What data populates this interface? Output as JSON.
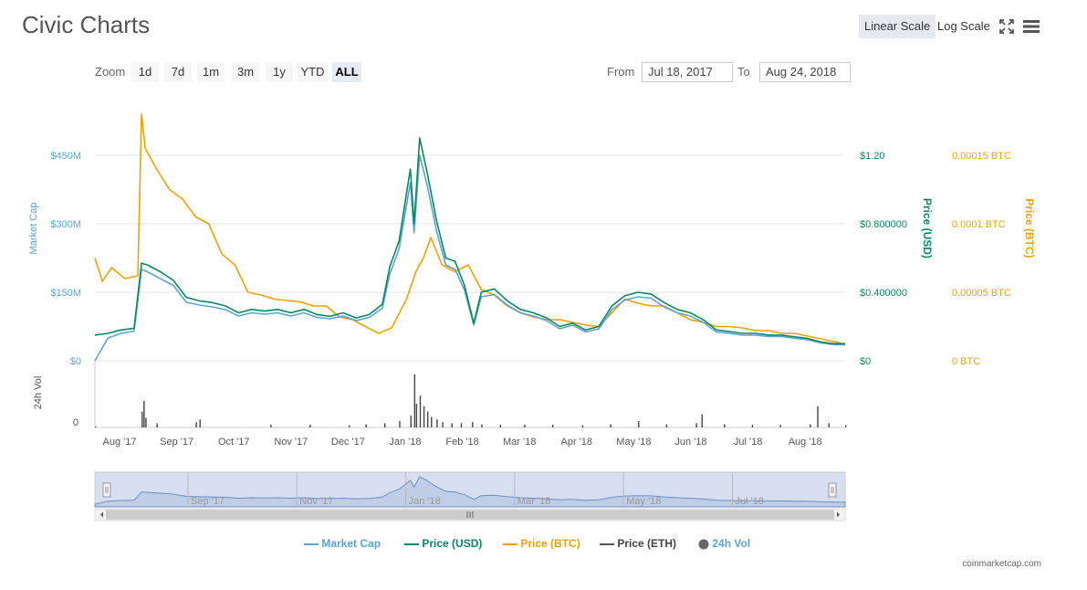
{
  "title": "Civic Charts",
  "toolbar": {
    "linear_scale": "Linear Scale",
    "log_scale": "Log Scale",
    "fullscreen_icon": "fullscreen-icon",
    "menu_icon": "hamburger-menu-icon"
  },
  "zoom": {
    "label": "Zoom",
    "buttons": [
      "1d",
      "7d",
      "1m",
      "3m",
      "1y",
      "YTD",
      "ALL"
    ],
    "active": "ALL"
  },
  "range": {
    "from_label": "From",
    "from_value": "Jul 18, 2017",
    "to_label": "To",
    "to_value": "Aug 24, 2018"
  },
  "colors": {
    "market_cap": "#5ba4d9",
    "price_usd": "#0a8a5e",
    "price_btc": "#f2a100",
    "price_eth": "#555555",
    "volume": "#444444"
  },
  "legend": {
    "market_cap": "Market Cap",
    "price_usd": "Price (USD)",
    "price_btc": "Price (BTC)",
    "price_eth": "Price (ETH)",
    "volume": "24h Vol"
  },
  "credit": "coinmarketcap.com",
  "chart_data": {
    "type": "line",
    "title": "Civic Charts",
    "x_range": [
      "2017-07-18",
      "2018-08-24"
    ],
    "x_ticks": [
      "Aug '17",
      "Sep '17",
      "Oct '17",
      "Nov '17",
      "Dec '17",
      "Jan '18",
      "Feb '18",
      "Mar '18",
      "Apr '18",
      "May '18",
      "Jun '18",
      "Jul '18",
      "Aug '18"
    ],
    "navigator_ticks": [
      "Sep '17",
      "Nov '17",
      "Jan '18",
      "Mar '18",
      "May '18",
      "Jul '18"
    ],
    "axes": {
      "market_cap": {
        "label": "Market Cap",
        "ticks": [
          "$0",
          "$150M",
          "$300M",
          "$450M"
        ],
        "range": [
          0,
          450
        ]
      },
      "price_usd": {
        "label": "Price (USD)",
        "ticks": [
          "$0",
          "$0.400000",
          "$0.800000",
          "$1.20"
        ],
        "range": [
          0,
          1.2
        ]
      },
      "price_btc": {
        "label": "Price (BTC)",
        "ticks": [
          "0 BTC",
          "0.00005 BTC",
          "0.0001 BTC",
          "0.00015 BTC"
        ],
        "range": [
          0,
          0.00015
        ]
      },
      "volume": {
        "label": "24h Vol",
        "ticks": [
          "0"
        ]
      }
    },
    "series": [
      {
        "name": "Price (USD)",
        "x": [
          "2017-07-18",
          "2017-07-25",
          "2017-08-01",
          "2017-08-08",
          "2017-08-12",
          "2017-08-15",
          "2017-08-22",
          "2017-08-29",
          "2017-09-05",
          "2017-09-12",
          "2017-09-19",
          "2017-09-26",
          "2017-10-03",
          "2017-10-10",
          "2017-10-17",
          "2017-10-24",
          "2017-10-31",
          "2017-11-07",
          "2017-11-14",
          "2017-11-21",
          "2017-11-28",
          "2017-12-05",
          "2017-12-12",
          "2017-12-19",
          "2017-12-23",
          "2017-12-28",
          "2018-01-03",
          "2018-01-05",
          "2018-01-08",
          "2018-01-12",
          "2018-01-17",
          "2018-01-22",
          "2018-01-27",
          "2018-02-01",
          "2018-02-06",
          "2018-02-10",
          "2018-02-17",
          "2018-02-24",
          "2018-03-03",
          "2018-03-10",
          "2018-03-17",
          "2018-03-24",
          "2018-03-31",
          "2018-04-07",
          "2018-04-14",
          "2018-04-21",
          "2018-04-28",
          "2018-05-05",
          "2018-05-12",
          "2018-05-19",
          "2018-05-26",
          "2018-06-02",
          "2018-06-09",
          "2018-06-16",
          "2018-06-23",
          "2018-06-30",
          "2018-07-07",
          "2018-07-14",
          "2018-07-21",
          "2018-07-28",
          "2018-08-04",
          "2018-08-11",
          "2018-08-18",
          "2018-08-24"
        ],
        "values": [
          0.15,
          0.16,
          0.18,
          0.19,
          0.57,
          0.56,
          0.52,
          0.47,
          0.37,
          0.35,
          0.34,
          0.32,
          0.28,
          0.3,
          0.29,
          0.3,
          0.28,
          0.3,
          0.27,
          0.26,
          0.28,
          0.25,
          0.27,
          0.33,
          0.55,
          0.7,
          1.12,
          0.8,
          1.3,
          1.1,
          0.82,
          0.6,
          0.58,
          0.44,
          0.22,
          0.4,
          0.42,
          0.35,
          0.3,
          0.28,
          0.25,
          0.2,
          0.22,
          0.18,
          0.2,
          0.32,
          0.38,
          0.4,
          0.39,
          0.34,
          0.3,
          0.28,
          0.24,
          0.18,
          0.17,
          0.16,
          0.16,
          0.15,
          0.15,
          0.14,
          0.13,
          0.11,
          0.1,
          0.1
        ]
      },
      {
        "name": "Market Cap",
        "x": [
          "2017-07-18",
          "2017-07-25",
          "2017-08-01",
          "2017-08-08",
          "2017-08-12",
          "2017-08-15",
          "2017-08-22",
          "2017-08-29",
          "2017-09-05",
          "2017-09-12",
          "2017-09-19",
          "2017-09-26",
          "2017-10-03",
          "2017-10-10",
          "2017-10-17",
          "2017-10-24",
          "2017-10-31",
          "2017-11-07",
          "2017-11-14",
          "2017-11-21",
          "2017-11-28",
          "2017-12-05",
          "2017-12-12",
          "2017-12-19",
          "2017-12-23",
          "2017-12-28",
          "2018-01-03",
          "2018-01-05",
          "2018-01-08",
          "2018-01-12",
          "2018-01-17",
          "2018-01-22",
          "2018-01-27",
          "2018-02-01",
          "2018-02-06",
          "2018-02-10",
          "2018-02-17",
          "2018-02-24",
          "2018-03-03",
          "2018-03-10",
          "2018-03-17",
          "2018-03-24",
          "2018-03-31",
          "2018-04-07",
          "2018-04-14",
          "2018-04-21",
          "2018-04-28",
          "2018-05-05",
          "2018-05-12",
          "2018-05-19",
          "2018-05-26",
          "2018-06-02",
          "2018-06-09",
          "2018-06-16",
          "2018-06-23",
          "2018-06-30",
          "2018-07-07",
          "2018-07-14",
          "2018-07-21",
          "2018-07-28",
          "2018-08-04",
          "2018-08-11",
          "2018-08-18",
          "2018-08-24"
        ],
        "values": [
          0,
          50,
          60,
          65,
          200,
          195,
          180,
          165,
          128,
          122,
          118,
          112,
          98,
          105,
          102,
          105,
          98,
          105,
          95,
          92,
          98,
          88,
          95,
          115,
          190,
          245,
          390,
          280,
          450,
          385,
          285,
          210,
          200,
          155,
          78,
          140,
          145,
          122,
          105,
          98,
          88,
          70,
          78,
          63,
          70,
          112,
          133,
          140,
          137,
          118,
          105,
          98,
          84,
          63,
          60,
          56,
          56,
          53,
          53,
          49,
          46,
          39,
          35,
          35
        ]
      },
      {
        "name": "Price (BTC)",
        "x": [
          "2017-07-18",
          "2017-07-22",
          "2017-07-27",
          "2017-08-03",
          "2017-08-10",
          "2017-08-12",
          "2017-08-14",
          "2017-08-20",
          "2017-08-27",
          "2017-09-03",
          "2017-09-10",
          "2017-09-17",
          "2017-09-24",
          "2017-10-01",
          "2017-10-08",
          "2017-10-15",
          "2017-10-22",
          "2017-10-29",
          "2017-11-05",
          "2017-11-12",
          "2017-11-19",
          "2017-11-26",
          "2017-12-03",
          "2017-12-10",
          "2017-12-17",
          "2017-12-24",
          "2018-01-01",
          "2018-01-06",
          "2018-01-10",
          "2018-01-14",
          "2018-01-20",
          "2018-01-27",
          "2018-02-03",
          "2018-02-10",
          "2018-02-17",
          "2018-02-24",
          "2018-03-03",
          "2018-03-10",
          "2018-03-17",
          "2018-03-24",
          "2018-03-31",
          "2018-04-07",
          "2018-04-14",
          "2018-04-21",
          "2018-04-28",
          "2018-05-05",
          "2018-05-12",
          "2018-05-19",
          "2018-05-26",
          "2018-06-02",
          "2018-06-09",
          "2018-06-16",
          "2018-06-23",
          "2018-06-30",
          "2018-07-07",
          "2018-07-14",
          "2018-07-21",
          "2018-07-28",
          "2018-08-04",
          "2018-08-11",
          "2018-08-18",
          "2018-08-24"
        ],
        "values": [
          7.5e-05,
          5.8e-05,
          6.8e-05,
          6e-05,
          6.2e-05,
          0.00018,
          0.000155,
          0.00014,
          0.000125,
          0.000118,
          0.000105,
          0.0001,
          7.8e-05,
          7e-05,
          5e-05,
          4.8e-05,
          4.5e-05,
          4.4e-05,
          4.3e-05,
          4e-05,
          4e-05,
          3.2e-05,
          3e-05,
          2.5e-05,
          2e-05,
          2.4e-05,
          4.5e-05,
          6.5e-05,
          7.5e-05,
          9e-05,
          7e-05,
          6.5e-05,
          7e-05,
          5.2e-05,
          4.8e-05,
          4e-05,
          3.5e-05,
          3.2e-05,
          3e-05,
          3e-05,
          2.8e-05,
          2.6e-05,
          2.5e-05,
          3.5e-05,
          4.5e-05,
          4.2e-05,
          4e-05,
          4e-05,
          3.5e-05,
          3e-05,
          2.8e-05,
          2.5e-05,
          2.5e-05,
          2.4e-05,
          2.2e-05,
          2.2e-05,
          2e-05,
          2e-05,
          1.8e-05,
          1.6e-05,
          1.4e-05,
          1.2e-05
        ]
      },
      {
        "name": "24h Vol",
        "x": [
          "2017-07-18",
          "2017-08-12",
          "2017-08-13",
          "2017-08-14",
          "2017-08-20",
          "2017-09-10",
          "2017-09-12",
          "2017-10-20",
          "2017-11-10",
          "2017-12-01",
          "2017-12-10",
          "2017-12-20",
          "2017-12-28",
          "2018-01-03",
          "2018-01-05",
          "2018-01-06",
          "2018-01-08",
          "2018-01-10",
          "2018-01-12",
          "2018-01-14",
          "2018-01-17",
          "2018-01-20",
          "2018-01-25",
          "2018-01-30",
          "2018-02-05",
          "2018-02-10",
          "2018-02-20",
          "2018-03-05",
          "2018-03-20",
          "2018-04-05",
          "2018-04-20",
          "2018-05-05",
          "2018-05-20",
          "2018-06-05",
          "2018-06-08",
          "2018-06-20",
          "2018-07-05",
          "2018-07-20",
          "2018-08-05",
          "2018-08-09",
          "2018-08-15",
          "2018-08-24"
        ],
        "values": [
          2,
          30,
          50,
          18,
          8,
          10,
          15,
          5,
          5,
          4,
          6,
          8,
          12,
          22,
          100,
          45,
          60,
          40,
          30,
          20,
          15,
          10,
          8,
          8,
          10,
          6,
          5,
          5,
          5,
          4,
          6,
          12,
          6,
          8,
          25,
          6,
          5,
          5,
          6,
          40,
          8,
          4
        ]
      }
    ],
    "grid": true,
    "legend_position": "bottom-center"
  }
}
